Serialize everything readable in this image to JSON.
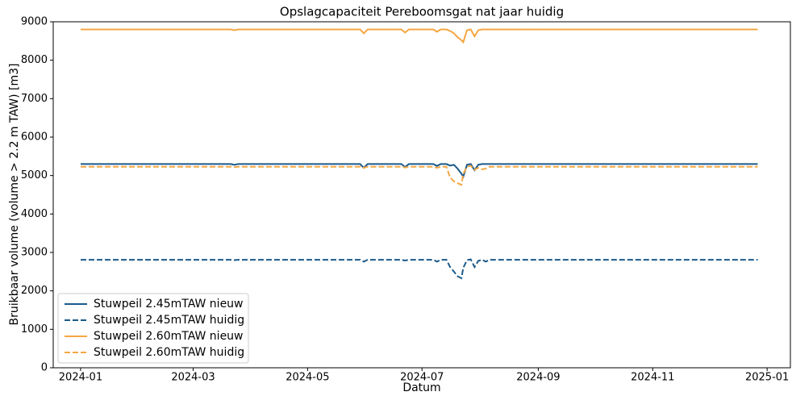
{
  "chart_data": {
    "type": "line",
    "title": "Opslagcapaciteit Pereboomsgat nat jaar huidig",
    "xlabel": "Datum",
    "ylabel": "Bruikbaar volume (volume > 2.2 m TAW) [m3]",
    "x": [
      0,
      80,
      82,
      84,
      149,
      151,
      153,
      171,
      173,
      175,
      188,
      190,
      192,
      195,
      197,
      199,
      201,
      203,
      204,
      206,
      208,
      210,
      212,
      214,
      216,
      218,
      361
    ],
    "series": [
      {
        "name": "Stuwpeil 2.45mTAW nieuw",
        "color": "#1b5a8a",
        "linestyle": "solid",
        "values": [
          5300,
          5300,
          5280,
          5300,
          5300,
          5200,
          5300,
          5300,
          5220,
          5300,
          5300,
          5250,
          5300,
          5300,
          5260,
          5280,
          5180,
          5050,
          4970,
          5280,
          5300,
          5140,
          5280,
          5300,
          5300,
          5300,
          5300
        ]
      },
      {
        "name": "Stuwpeil 2.45mTAW huidig",
        "color": "#1b5a8a",
        "linestyle": "dashed",
        "values": [
          2810,
          2810,
          2800,
          2810,
          2810,
          2760,
          2810,
          2810,
          2790,
          2810,
          2810,
          2760,
          2810,
          2810,
          2620,
          2500,
          2380,
          2330,
          2600,
          2800,
          2820,
          2620,
          2780,
          2810,
          2760,
          2810,
          2810
        ]
      },
      {
        "name": "Stuwpeil 2.60mTAW nieuw",
        "color": "#f5a742",
        "linestyle": "solid",
        "values": [
          8800,
          8800,
          8780,
          8800,
          8800,
          8700,
          8800,
          8800,
          8720,
          8800,
          8800,
          8740,
          8800,
          8800,
          8760,
          8700,
          8600,
          8520,
          8470,
          8780,
          8800,
          8620,
          8780,
          8800,
          8800,
          8800,
          8800
        ]
      },
      {
        "name": "Stuwpeil 2.60mTAW huidig",
        "color": "#f5a742",
        "linestyle": "dashed",
        "values": [
          5230,
          5230,
          5220,
          5230,
          5230,
          5200,
          5230,
          5230,
          5210,
          5230,
          5230,
          5200,
          5230,
          5230,
          4950,
          4850,
          4800,
          4760,
          5050,
          5230,
          5250,
          5150,
          5200,
          5160,
          5180,
          5230,
          5230
        ]
      }
    ],
    "xlim": [
      -14.6,
      378.4
    ],
    "xticks": [
      {
        "value": 0,
        "label": "2024-01"
      },
      {
        "value": 60,
        "label": "2024-03"
      },
      {
        "value": 121,
        "label": "2024-05"
      },
      {
        "value": 182,
        "label": "2024-07"
      },
      {
        "value": 244,
        "label": "2024-09"
      },
      {
        "value": 305,
        "label": "2024-11"
      },
      {
        "value": 366,
        "label": "2025-01"
      }
    ],
    "ylim": [
      0,
      9000
    ],
    "yticks": [
      0,
      1000,
      2000,
      3000,
      4000,
      5000,
      6000,
      7000,
      8000,
      9000
    ],
    "grid": false,
    "legend": "lower left"
  }
}
